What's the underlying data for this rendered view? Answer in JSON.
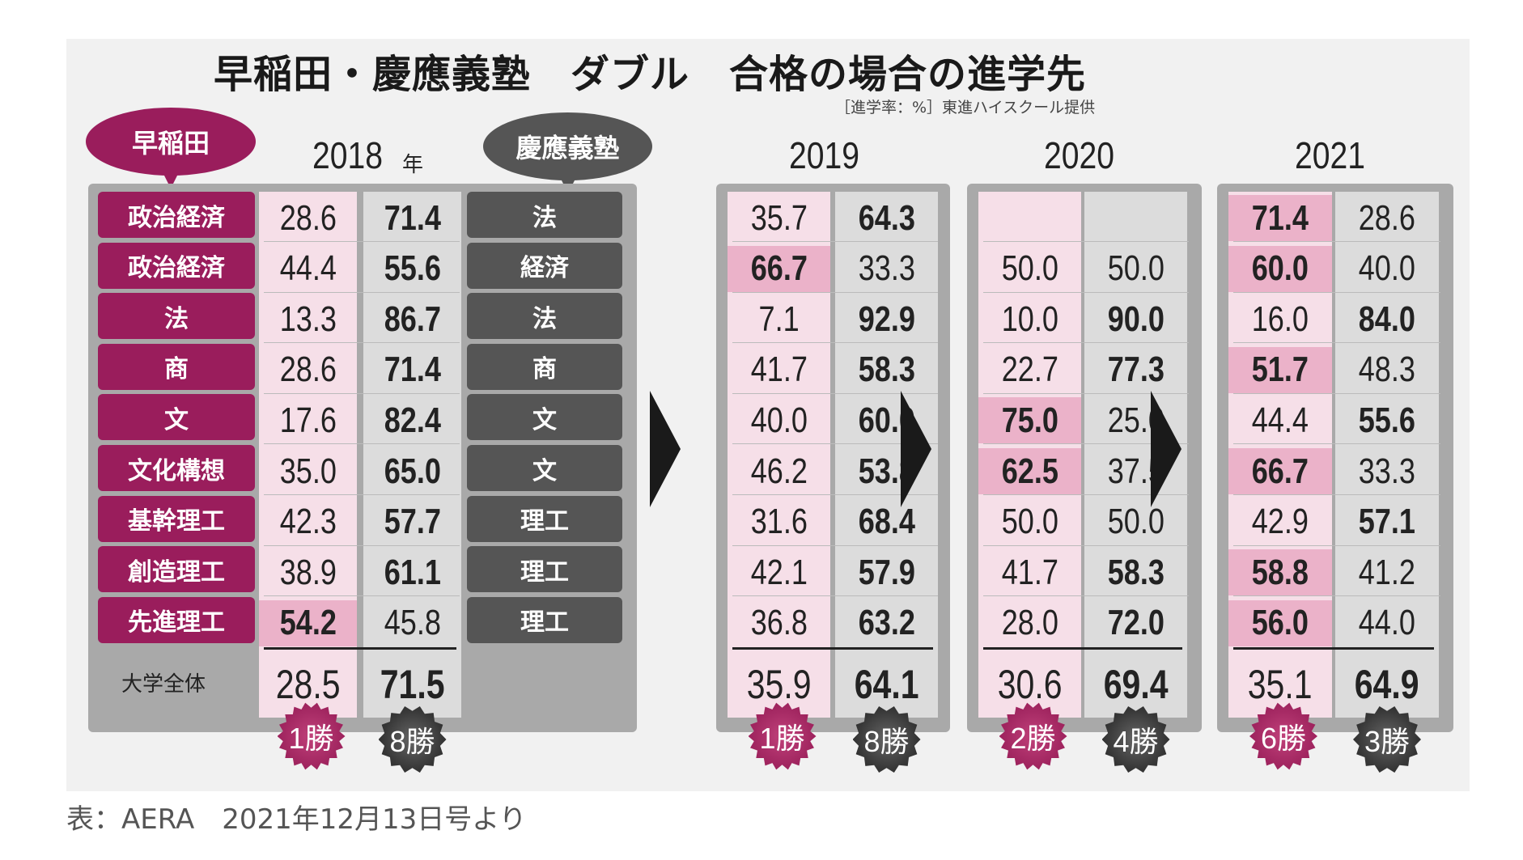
{
  "title": "早稲田・慶應義塾　ダブル　合格の場合の進学先",
  "subtitle": "［進学率：%］東進ハイスクール提供",
  "waseda_bubble": "早稲田",
  "keio_bubble": "慶應義塾",
  "first_year_suffix": "年",
  "waseda_faculties": [
    "政治経済",
    "政治経済",
    "法",
    "商",
    "文",
    "文化構想",
    "基幹理工",
    "創造理工",
    "先進理工"
  ],
  "keio_faculties": [
    "法",
    "経済",
    "法",
    "商",
    "文",
    "文",
    "理工",
    "理工",
    "理工"
  ],
  "total_label": "大学全体",
  "years": [
    {
      "year": "2018",
      "waseda": [
        "28.6",
        "44.4",
        "13.3",
        "28.6",
        "17.6",
        "35.0",
        "42.3",
        "38.9",
        "54.2"
      ],
      "keio": [
        "71.4",
        "55.6",
        "86.7",
        "71.4",
        "82.4",
        "65.0",
        "57.7",
        "61.1",
        "45.8"
      ],
      "total_waseda": "28.5",
      "total_keio": "71.5",
      "waseda_wins": "1勝",
      "keio_wins": "8勝"
    },
    {
      "year": "2019",
      "waseda": [
        "35.7",
        "66.7",
        "7.1",
        "41.7",
        "40.0",
        "46.2",
        "31.6",
        "42.1",
        "36.8"
      ],
      "keio": [
        "64.3",
        "33.3",
        "92.9",
        "58.3",
        "60.0",
        "53.8",
        "68.4",
        "57.9",
        "63.2"
      ],
      "total_waseda": "35.9",
      "total_keio": "64.1",
      "waseda_wins": "1勝",
      "keio_wins": "8勝"
    },
    {
      "year": "2020",
      "waseda": [
        "",
        "50.0",
        "10.0",
        "22.7",
        "75.0",
        "62.5",
        "50.0",
        "41.7",
        "28.0"
      ],
      "keio": [
        "",
        "50.0",
        "90.0",
        "77.3",
        "25.0",
        "37.5",
        "50.0",
        "58.3",
        "72.0"
      ],
      "total_waseda": "30.6",
      "total_keio": "69.4",
      "waseda_wins": "2勝",
      "keio_wins": "4勝"
    },
    {
      "year": "2021",
      "waseda": [
        "71.4",
        "60.0",
        "16.0",
        "51.7",
        "44.4",
        "66.7",
        "42.9",
        "58.8",
        "56.0"
      ],
      "keio": [
        "28.6",
        "40.0",
        "84.0",
        "48.3",
        "55.6",
        "33.3",
        "57.1",
        "41.2",
        "44.0"
      ],
      "total_waseda": "35.1",
      "total_keio": "64.9",
      "waseda_wins": "6勝",
      "keio_wins": "3勝"
    }
  ],
  "footer": "表：AERA　2021年12月13日号より",
  "colors": {
    "waseda": "#9a1d5c",
    "keio": "#555555",
    "pink": "#f6dfe8",
    "pink_win": "#ebb2c9",
    "gray": "#dcdcdc",
    "panel": "#a9a9a9"
  }
}
